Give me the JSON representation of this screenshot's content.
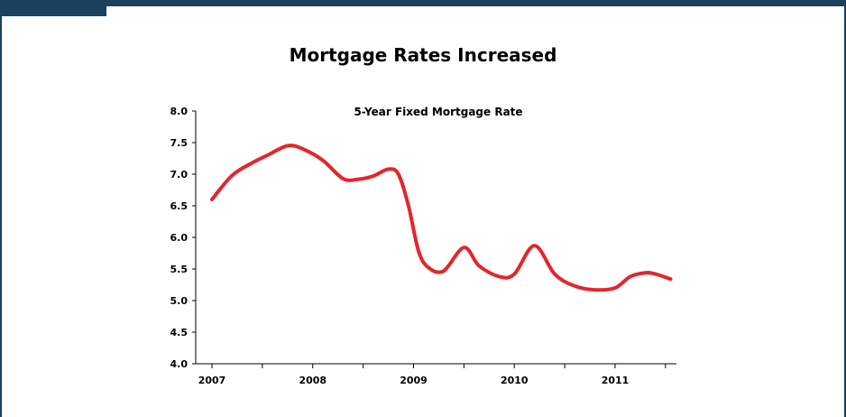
{
  "slide": {
    "title": "Mortgage Rates Increased",
    "frame_color": "#1c3f5c"
  },
  "chart_data": {
    "type": "line",
    "title": "5-Year Fixed Mortgage Rate",
    "xlabel": "",
    "ylabel": "",
    "x_ticks": [
      "2007",
      "2008",
      "2009",
      "2010",
      "2011"
    ],
    "xlim": [
      2007,
      2011.6
    ],
    "ylim": [
      4.0,
      8.0
    ],
    "y_ticks": [
      "8.0",
      "7.5",
      "7.0",
      "6.5",
      "6.0",
      "5.5",
      "5.0",
      "4.5",
      "4.0"
    ],
    "grid": false,
    "legend": "none",
    "series": [
      {
        "color": "#e3262c",
        "points": [
          [
            2007.0,
            6.6
          ],
          [
            2007.2,
            6.98
          ],
          [
            2007.4,
            7.18
          ],
          [
            2007.55,
            7.3
          ],
          [
            2007.75,
            7.45
          ],
          [
            2007.9,
            7.4
          ],
          [
            2008.1,
            7.22
          ],
          [
            2008.3,
            6.93
          ],
          [
            2008.45,
            6.92
          ],
          [
            2008.6,
            6.97
          ],
          [
            2008.75,
            7.08
          ],
          [
            2008.85,
            7.0
          ],
          [
            2008.95,
            6.5
          ],
          [
            2009.05,
            5.78
          ],
          [
            2009.15,
            5.52
          ],
          [
            2009.3,
            5.47
          ],
          [
            2009.5,
            5.84
          ],
          [
            2009.65,
            5.55
          ],
          [
            2009.85,
            5.38
          ],
          [
            2010.0,
            5.42
          ],
          [
            2010.2,
            5.87
          ],
          [
            2010.4,
            5.42
          ],
          [
            2010.6,
            5.23
          ],
          [
            2010.8,
            5.17
          ],
          [
            2011.0,
            5.2
          ],
          [
            2011.15,
            5.38
          ],
          [
            2011.3,
            5.44
          ],
          [
            2011.4,
            5.42
          ],
          [
            2011.55,
            5.34
          ]
        ]
      }
    ]
  }
}
